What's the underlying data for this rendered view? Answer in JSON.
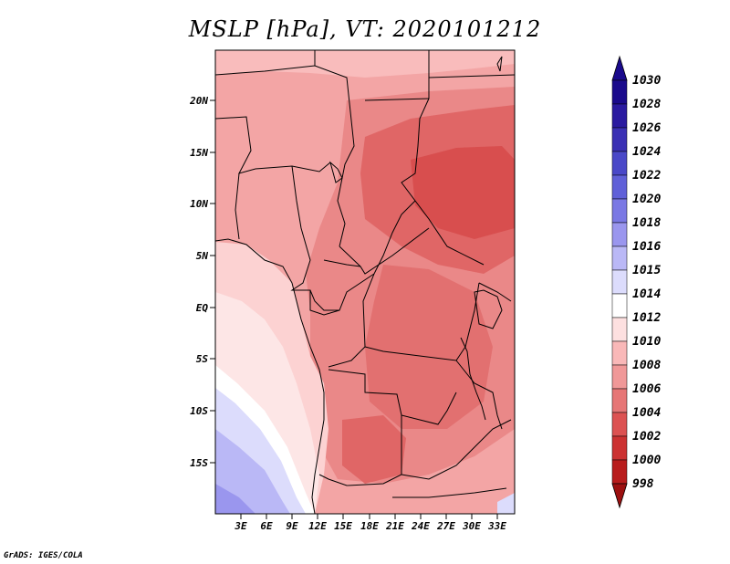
{
  "title": "MSLP [hPa], VT: 2020101212",
  "credit": "GrADS: IGES/COLA",
  "map": {
    "lat_labels": [
      "20N",
      "15N",
      "10N",
      "5N",
      "EQ",
      "5S",
      "10S",
      "15S"
    ],
    "lon_labels": [
      "3E",
      "6E",
      "9E",
      "12E",
      "15E",
      "18E",
      "21E",
      "24E",
      "27E",
      "30E",
      "33E"
    ]
  },
  "colorbar": {
    "levels": [
      "1030",
      "1028",
      "1026",
      "1024",
      "1022",
      "1020",
      "1018",
      "1016",
      "1015",
      "1014",
      "1012",
      "1010",
      "1008",
      "1006",
      "1004",
      "1002",
      "1000",
      "998"
    ],
    "colors": [
      "#1a0a8c",
      "#2a1aa0",
      "#3a30b4",
      "#4a48c8",
      "#6060d8",
      "#7a78e4",
      "#9a96ee",
      "#bab8f6",
      "#dcdcfc",
      "#ffffff",
      "#fde0e0",
      "#f9b8b8",
      "#f09898",
      "#e67676",
      "#dc5252",
      "#cc3232",
      "#b81c1c",
      "#9c1010"
    ]
  }
}
